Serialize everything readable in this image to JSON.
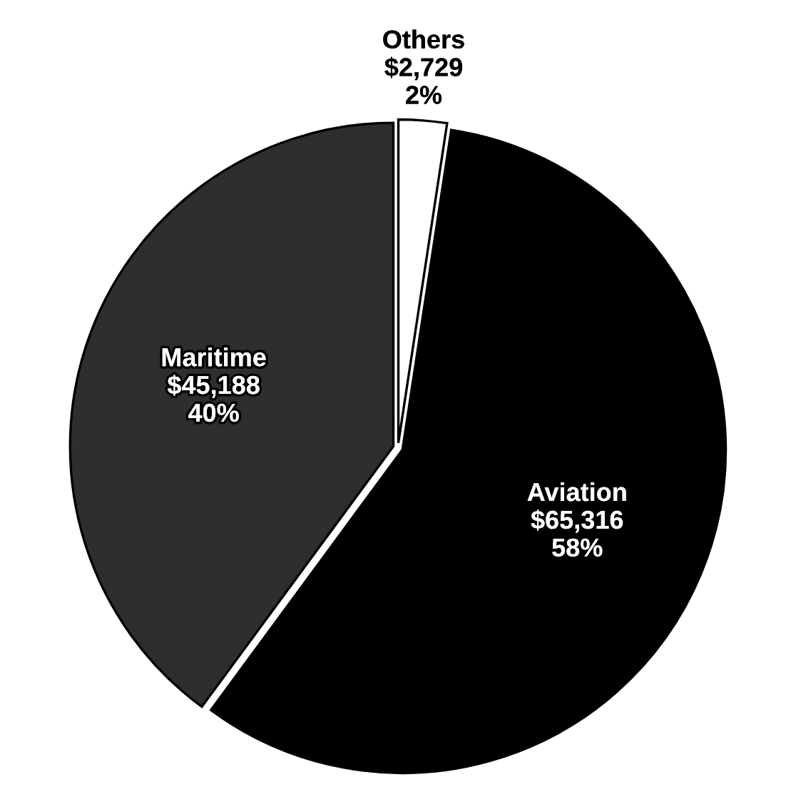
{
  "chart_data": {
    "type": "pie",
    "categories": [
      "Others",
      "Aviation",
      "Maritime"
    ],
    "values": [
      2729,
      65316,
      45188
    ],
    "value_labels": [
      "$2,729\n2%",
      "$65,316\n58%",
      "$45,188\n40%"
    ],
    "colors": [
      "#ffffff",
      "#000000",
      "#2e2e2e"
    ],
    "legend": false
  }
}
